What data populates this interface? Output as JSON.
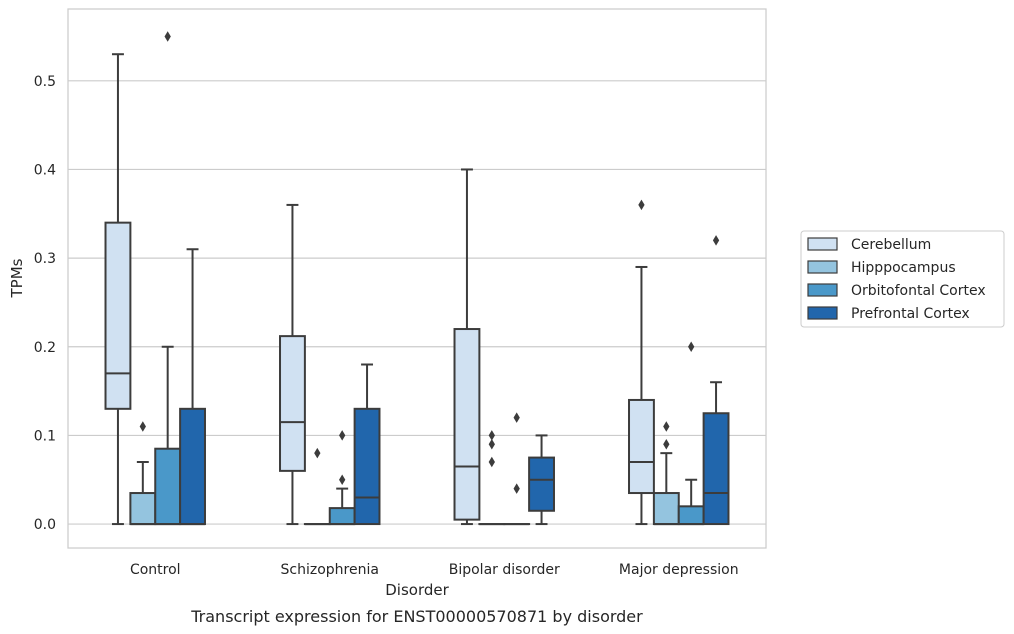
{
  "chart_data": {
    "type": "box",
    "caption": "Transcript expression for ENST00000570871 by disorder",
    "xlabel": "Disorder",
    "ylabel": "TPMs",
    "ylim": [
      -0.027,
      0.581
    ],
    "yticks": [
      0.0,
      0.1,
      0.2,
      0.3,
      0.4,
      0.5
    ],
    "ytick_labels": [
      "0.0",
      "0.1",
      "0.2",
      "0.3",
      "0.4",
      "0.5"
    ],
    "grid": "horizontal",
    "legend_position": "right",
    "categories": [
      "Control",
      "Schizophrenia",
      "Bipolar disorder",
      "Major depression"
    ],
    "series": [
      {
        "name": "Cerebellum",
        "color": "#d0e1f2",
        "boxes": [
          {
            "whisker_low": 0.0,
            "q1": 0.13,
            "median": 0.17,
            "q3": 0.34,
            "whisker_high": 0.53,
            "outliers": []
          },
          {
            "whisker_low": 0.0,
            "q1": 0.06,
            "median": 0.115,
            "q3": 0.212,
            "whisker_high": 0.36,
            "outliers": []
          },
          {
            "whisker_low": 0.0,
            "q1": 0.005,
            "median": 0.065,
            "q3": 0.22,
            "whisker_high": 0.4,
            "outliers": []
          },
          {
            "whisker_low": 0.0,
            "q1": 0.035,
            "median": 0.07,
            "q3": 0.14,
            "whisker_high": 0.29,
            "outliers": [
              0.36
            ]
          }
        ]
      },
      {
        "name": "Hipppocampus",
        "color": "#94c4df",
        "boxes": [
          {
            "whisker_low": 0.0,
            "q1": 0.0,
            "median": 0.0,
            "q3": 0.035,
            "whisker_high": 0.07,
            "outliers": [
              0.11
            ]
          },
          {
            "whisker_low": 0.0,
            "q1": 0.0,
            "median": 0.0,
            "q3": 0.0,
            "whisker_high": 0.0,
            "outliers": [
              0.08
            ]
          },
          {
            "whisker_low": 0.0,
            "q1": 0.0,
            "median": 0.0,
            "q3": 0.0,
            "whisker_high": 0.0,
            "outliers": [
              0.1,
              0.09,
              0.07
            ]
          },
          {
            "whisker_low": 0.0,
            "q1": 0.0,
            "median": 0.0,
            "q3": 0.035,
            "whisker_high": 0.08,
            "outliers": [
              0.11,
              0.09
            ]
          }
        ]
      },
      {
        "name": "Orbitofontal Cortex",
        "color": "#4a98c9",
        "boxes": [
          {
            "whisker_low": 0.0,
            "q1": 0.0,
            "median": 0.0,
            "q3": 0.085,
            "whisker_high": 0.2,
            "outliers": [
              0.55
            ]
          },
          {
            "whisker_low": 0.0,
            "q1": 0.0,
            "median": 0.0,
            "q3": 0.018,
            "whisker_high": 0.04,
            "outliers": [
              0.1,
              0.05
            ]
          },
          {
            "whisker_low": 0.0,
            "q1": 0.0,
            "median": 0.0,
            "q3": 0.0,
            "whisker_high": 0.0,
            "outliers": [
              0.12,
              0.04
            ]
          },
          {
            "whisker_low": 0.0,
            "q1": 0.0,
            "median": 0.0,
            "q3": 0.02,
            "whisker_high": 0.05,
            "outliers": [
              0.2
            ]
          }
        ]
      },
      {
        "name": "Prefrontal Cortex",
        "color": "#2166ac",
        "boxes": [
          {
            "whisker_low": 0.0,
            "q1": 0.0,
            "median": 0.0,
            "q3": 0.13,
            "whisker_high": 0.31,
            "outliers": []
          },
          {
            "whisker_low": 0.0,
            "q1": 0.0,
            "median": 0.03,
            "q3": 0.13,
            "whisker_high": 0.18,
            "outliers": []
          },
          {
            "whisker_low": 0.0,
            "q1": 0.015,
            "median": 0.05,
            "q3": 0.075,
            "whisker_high": 0.1,
            "outliers": []
          },
          {
            "whisker_low": 0.0,
            "q1": 0.0,
            "median": 0.035,
            "q3": 0.125,
            "whisker_high": 0.16,
            "outliers": [
              0.32
            ]
          }
        ]
      }
    ]
  }
}
